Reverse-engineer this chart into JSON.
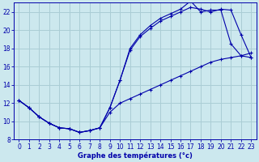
{
  "xlabel": "Graphe des températures (°c)",
  "xlim": [
    -0.5,
    23.5
  ],
  "ylim": [
    8,
    23
  ],
  "yticks": [
    8,
    10,
    12,
    14,
    16,
    18,
    20,
    22
  ],
  "xticks": [
    0,
    1,
    2,
    3,
    4,
    5,
    6,
    7,
    8,
    9,
    10,
    11,
    12,
    13,
    14,
    15,
    16,
    17,
    18,
    19,
    20,
    21,
    22,
    23
  ],
  "background_color": "#cce8ee",
  "grid_color": "#aacdd5",
  "line_color": "#0000aa",
  "line1_x": [
    0,
    1,
    2,
    3,
    4,
    5,
    6,
    7,
    8,
    9,
    10,
    11,
    12,
    13,
    14,
    15,
    16,
    17,
    18,
    19,
    20,
    21,
    22,
    23
  ],
  "line1_y": [
    12.3,
    11.5,
    10.5,
    9.8,
    9.3,
    9.2,
    8.8,
    9.0,
    9.3,
    11.5,
    14.5,
    18.0,
    19.5,
    20.5,
    21.3,
    21.8,
    22.3,
    23.2,
    22.0,
    22.2,
    22.2,
    18.5,
    17.2,
    17.5
  ],
  "line2_x": [
    0,
    1,
    2,
    3,
    4,
    5,
    6,
    7,
    8,
    9,
    10,
    11,
    12,
    13,
    14,
    15,
    16,
    17,
    18,
    19,
    20,
    21,
    22,
    23
  ],
  "line2_y": [
    12.3,
    11.5,
    10.5,
    9.8,
    9.3,
    9.2,
    8.8,
    9.0,
    9.3,
    11.5,
    14.5,
    17.8,
    19.3,
    20.2,
    21.0,
    21.5,
    22.0,
    22.5,
    22.3,
    22.0,
    22.3,
    22.2,
    19.5,
    17.0
  ],
  "line3_x": [
    0,
    1,
    2,
    3,
    4,
    5,
    6,
    7,
    8,
    9,
    10,
    11,
    12,
    13,
    14,
    15,
    16,
    17,
    18,
    19,
    20,
    21,
    22,
    23
  ],
  "line3_y": [
    12.3,
    11.5,
    10.5,
    9.8,
    9.3,
    9.2,
    8.8,
    9.0,
    9.3,
    11.0,
    12.0,
    12.5,
    13.0,
    13.5,
    14.0,
    14.5,
    15.0,
    15.5,
    16.0,
    16.5,
    16.8,
    17.0,
    17.2,
    17.0
  ]
}
